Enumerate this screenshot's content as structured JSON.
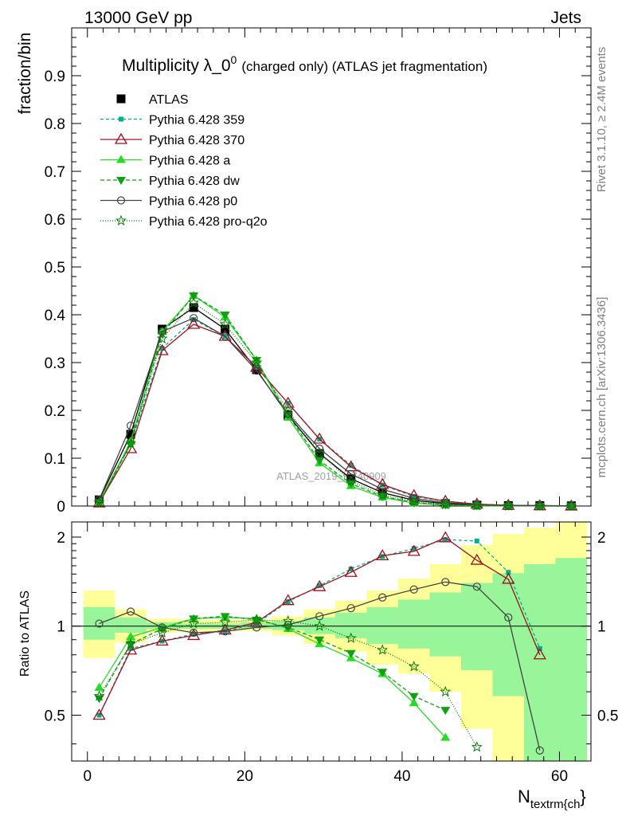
{
  "header": {
    "left": "13000 GeV pp",
    "right": "Jets"
  },
  "side_labels": {
    "rivet": "Rivet 3.1.10, ≥ 2.4M events",
    "mcplots": "mcplots.cern.ch [arXiv:1306.3436]"
  },
  "chart_data": [
    {
      "type": "line",
      "title_main": "Multiplicity λ_0",
      "title_sup": "0",
      "title_note": "(charged only) (ATLAS jet fragmentation)",
      "ylabel": "fraction/bin",
      "watermark": "ATLAS_2019_I1740909",
      "xlim": [
        -2,
        64
      ],
      "ylim": [
        0,
        1.0
      ],
      "yticks": [
        "0",
        "0.1",
        "0.2",
        "0.3",
        "0.4",
        "0.5",
        "0.6",
        "0.7",
        "0.8",
        "0.9"
      ],
      "x": [
        1.5,
        5.5,
        9.5,
        13.5,
        17.5,
        21.5,
        25.5,
        29.5,
        33.5,
        37.5,
        41.5,
        45.5,
        49.5,
        53.5,
        57.5,
        61.5
      ],
      "series": [
        {
          "name": "ATLAS",
          "color": "#000000",
          "marker": "square",
          "dash": "none",
          "values": [
            0.013,
            0.15,
            0.37,
            0.415,
            0.37,
            0.285,
            0.19,
            0.11,
            0.057,
            0.028,
            0.012,
            0.005,
            0.002,
            0.001,
            0.001,
            0.0004
          ]
        },
        {
          "name": "Pythia 6.428 359",
          "color": "#00b08a",
          "marker": "smallsquare",
          "dash": "4,3",
          "values": [
            0.006,
            0.13,
            0.33,
            0.39,
            0.355,
            0.29,
            0.215,
            0.14,
            0.085,
            0.044,
            0.02,
            0.01,
            0.004,
            0.0015,
            0.0006,
            0.0002
          ]
        },
        {
          "name": "Pythia 6.428 370",
          "color": "#a0101e",
          "marker": "triangle-open",
          "dash": "none",
          "values": [
            0.0065,
            0.12,
            0.325,
            0.38,
            0.355,
            0.29,
            0.215,
            0.14,
            0.082,
            0.045,
            0.022,
            0.01,
            0.004,
            0.0015,
            0.0005,
            0.0001
          ]
        },
        {
          "name": "Pythia 6.428 a",
          "color": "#22dd22",
          "marker": "triangle",
          "dash": "none",
          "values": [
            0.008,
            0.135,
            0.365,
            0.44,
            0.395,
            0.305,
            0.185,
            0.09,
            0.042,
            0.018,
            0.006,
            0.002,
            0.0006,
            0.0002,
            0.0001,
            0.0
          ]
        },
        {
          "name": "Pythia 6.428 dw",
          "color": "#11a011",
          "marker": "triangle-down",
          "dash": "5,3",
          "values": [
            0.0075,
            0.13,
            0.36,
            0.44,
            0.4,
            0.305,
            0.19,
            0.095,
            0.047,
            0.02,
            0.007,
            0.0025,
            0.0008,
            0.0003,
            0.0001,
            0.0
          ]
        },
        {
          "name": "Pythia 6.428 p0",
          "color": "#444444",
          "marker": "circle-open",
          "dash": "none",
          "values": [
            0.0135,
            0.168,
            0.365,
            0.393,
            0.355,
            0.283,
            0.193,
            0.12,
            0.067,
            0.035,
            0.016,
            0.007,
            0.003,
            0.001,
            0.0003,
            0.0
          ]
        },
        {
          "name": "Pythia 6.428 pro-q2o",
          "color": "#0a7a0a",
          "marker": "star",
          "dash": "1,2",
          "values": [
            0.0075,
            0.13,
            0.35,
            0.425,
            0.38,
            0.3,
            0.2,
            0.11,
            0.052,
            0.023,
            0.009,
            0.003,
            0.001,
            0.0003,
            0.0001,
            0.0
          ]
        }
      ]
    },
    {
      "type": "line",
      "ylabel": "Ratio to ATLAS",
      "xlabel_main": "N",
      "xlabel_sub": "textrm{ch",
      "xlabel_brace": "}",
      "xlim": [
        -2,
        64
      ],
      "ylim": [
        0.35,
        2.25
      ],
      "yticks": [
        "0.5",
        "1",
        "2"
      ],
      "xticks": [
        "0",
        "20",
        "40",
        "60"
      ],
      "x": [
        1.5,
        5.5,
        9.5,
        13.5,
        17.5,
        21.5,
        25.5,
        29.5,
        33.5,
        37.5,
        41.5,
        45.5,
        49.5,
        53.5,
        57.5,
        61.5
      ],
      "band_edges": [
        -0.5,
        3.5,
        7.5,
        11.5,
        15.5,
        19.5,
        23.5,
        27.5,
        31.5,
        35.5,
        39.5,
        43.5,
        47.5,
        51.5,
        55.5,
        59.5,
        63.5
      ],
      "band_yellow": [
        [
          0.78,
          1.32
        ],
        [
          0.88,
          1.14
        ],
        [
          0.95,
          1.06
        ],
        [
          0.96,
          1.05
        ],
        [
          0.96,
          1.05
        ],
        [
          0.96,
          1.05
        ],
        [
          0.93,
          1.08
        ],
        [
          0.87,
          1.14
        ],
        [
          0.82,
          1.22
        ],
        [
          0.74,
          1.32
        ],
        [
          0.69,
          1.45
        ],
        [
          0.6,
          1.62
        ],
        [
          0.45,
          1.88
        ],
        [
          0.35,
          2.05
        ],
        [
          0.35,
          2.15
        ],
        [
          0.35,
          2.25
        ]
      ],
      "band_green": [
        [
          0.9,
          1.16
        ],
        [
          0.95,
          1.07
        ],
        [
          0.98,
          1.03
        ],
        [
          0.98,
          1.02
        ],
        [
          0.98,
          1.02
        ],
        [
          0.98,
          1.03
        ],
        [
          0.97,
          1.04
        ],
        [
          0.94,
          1.07
        ],
        [
          0.91,
          1.11
        ],
        [
          0.87,
          1.16
        ],
        [
          0.84,
          1.23
        ],
        [
          0.79,
          1.3
        ],
        [
          0.71,
          1.4
        ],
        [
          0.58,
          1.51
        ],
        [
          0.35,
          1.62
        ],
        [
          0.35,
          1.7
        ]
      ],
      "series": [
        {
          "name": "Pythia 6.428 359",
          "color": "#00b08a",
          "marker": "smallsquare",
          "dash": "4,3",
          "values": [
            0.5,
            0.84,
            0.89,
            0.94,
            0.96,
            1.02,
            1.21,
            1.37,
            1.56,
            1.72,
            1.83,
            1.96,
            1.94,
            1.52,
            0.84,
            null
          ]
        },
        {
          "name": "Pythia 6.428 370",
          "color": "#a0101e",
          "marker": "triangle-open",
          "dash": "none",
          "values": [
            0.5,
            0.83,
            0.89,
            0.93,
            0.97,
            1.03,
            1.22,
            1.36,
            1.52,
            1.73,
            1.79,
            1.99,
            1.67,
            1.44,
            0.8,
            null
          ]
        },
        {
          "name": "Pythia 6.428 a",
          "color": "#22dd22",
          "marker": "triangle",
          "dash": "none",
          "values": [
            0.62,
            0.92,
            0.99,
            1.06,
            1.07,
            1.06,
            0.98,
            0.87,
            0.78,
            0.69,
            0.55,
            0.42,
            null,
            null,
            null,
            null
          ]
        },
        {
          "name": "Pythia 6.428 dw",
          "color": "#11a011",
          "marker": "triangle-down",
          "dash": "5,3",
          "values": [
            0.57,
            0.87,
            0.98,
            1.06,
            1.08,
            1.05,
            0.99,
            0.9,
            0.81,
            0.7,
            0.58,
            0.52,
            null,
            null,
            null,
            null
          ]
        },
        {
          "name": "Pythia 6.428 p0",
          "color": "#444444",
          "marker": "circle-open",
          "dash": "none",
          "values": [
            1.02,
            1.12,
            0.99,
            0.95,
            0.96,
            0.99,
            1.01,
            1.08,
            1.15,
            1.25,
            1.33,
            1.41,
            1.36,
            1.07,
            0.38,
            null
          ]
        },
        {
          "name": "Pythia 6.428 pro-q2o",
          "color": "#0a7a0a",
          "marker": "star",
          "dash": "1,2",
          "values": [
            0.58,
            0.87,
            0.95,
            1.02,
            1.03,
            1.05,
            1.04,
            1.0,
            0.91,
            0.83,
            0.73,
            0.6,
            0.39,
            null,
            null,
            null
          ]
        }
      ]
    }
  ]
}
